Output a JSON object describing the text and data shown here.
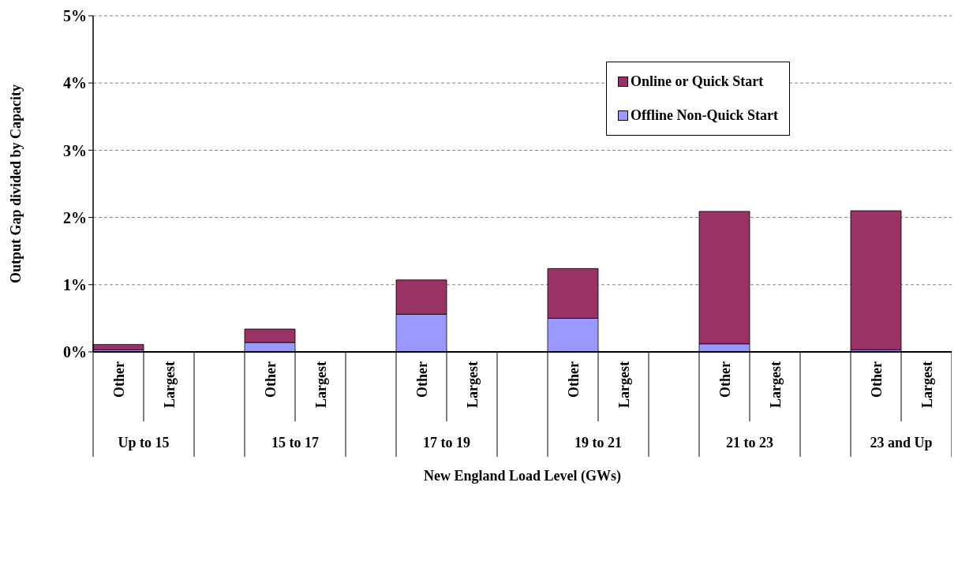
{
  "chart_data": {
    "type": "bar",
    "stacked": true,
    "xlabel": "New England Load Level (GWs)",
    "ylabel": "Output Gap divided by Capacity",
    "categories": [
      "Other",
      "Largest",
      null,
      "Other",
      "Largest",
      null,
      "Other",
      "Largest",
      null,
      "Other",
      "Largest",
      null,
      "Other",
      "Largest",
      null,
      "Other",
      "Largest"
    ],
    "annotations": [
      "Up to 15",
      "15 to 17",
      "17 to 19",
      "19 to 21",
      "21 to 23",
      "23 and Up"
    ],
    "series": [
      {
        "name": "Offline Non-Quick Start",
        "color": "#9999ff",
        "values": [
          0.03,
          0,
          null,
          0.14,
          0,
          null,
          0.56,
          0,
          null,
          0.5,
          0,
          null,
          0.12,
          0,
          null,
          0.03,
          0
        ]
      },
      {
        "name": "Online or Quick Start",
        "color": "#993366",
        "values": [
          0.08,
          0,
          null,
          0.2,
          0,
          null,
          0.51,
          0,
          null,
          0.74,
          0,
          null,
          1.97,
          0,
          null,
          2.07,
          0
        ]
      }
    ],
    "ylim": [
      0,
      5
    ],
    "yticks": [
      {
        "value": 0,
        "label": "0%"
      },
      {
        "value": 1,
        "label": "1%"
      },
      {
        "value": 2,
        "label": "2%"
      },
      {
        "value": 3,
        "label": "3%"
      },
      {
        "value": 4,
        "label": "4%"
      },
      {
        "value": 5,
        "label": "5%"
      }
    ],
    "grid": "y",
    "legend": "top right"
  }
}
